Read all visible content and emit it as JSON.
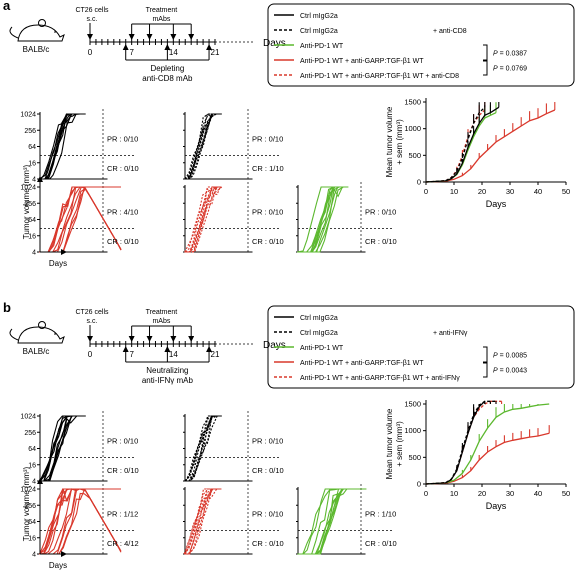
{
  "colors": {
    "ctrl": "#000000",
    "pd1": "#5cb82f",
    "combo": "#d9382c"
  },
  "panel_a": {
    "label": "a",
    "scheme": {
      "cells": [
        "CT26 cells",
        "s.c."
      ],
      "treatment": [
        "Treatment",
        "mAbs"
      ],
      "mouse": "BALB/c",
      "days_label": "Days",
      "ticks": [
        "0",
        "7",
        "14",
        "21"
      ],
      "depletion": [
        "Depleting",
        "anti-CD8 mAb"
      ]
    },
    "legend": [
      {
        "name": "Ctrl mIgG2a",
        "color": "#000000",
        "dashed": false,
        "extra": ""
      },
      {
        "name": "Ctrl mIgG2a",
        "color": "#000000",
        "dashed": true,
        "extra": "+ anti-CD8"
      },
      {
        "name": "Anti-PD-1 WT",
        "color": "#5cb82f",
        "dashed": false,
        "extra": ""
      },
      {
        "name": "Anti-PD-1 WT + anti-GARP:TGF-β1 WT",
        "color": "#d9382c",
        "dashed": false,
        "extra": ""
      },
      {
        "name": "Anti-PD-1 WT + anti-GARP:TGF-β1 WT + anti-CD8",
        "color": "#d9382c",
        "dashed": true,
        "extra": ""
      }
    ],
    "pvalues": [
      "P = 0.0387",
      "P = 0.0769"
    ],
    "panels": [
      {
        "pr": "PR : 0/10",
        "cr": "CR : 0/10"
      },
      {
        "pr": "PR : 0/10",
        "cr": "CR : 1/10"
      },
      {
        "pr": "PR : 4/10",
        "cr": "CR : 0/10"
      },
      {
        "pr": "PR : 0/10",
        "cr": "CR : 0/10"
      },
      {
        "pr": "PR : 0/10",
        "cr": "CR : 0/10"
      }
    ]
  },
  "panel_b": {
    "label": "b",
    "scheme": {
      "cells": [
        "CT26 cells",
        "s.c."
      ],
      "treatment": [
        "Treatment",
        "mAbs"
      ],
      "mouse": "BALB/c",
      "days_label": "Days",
      "ticks": [
        "0",
        "7",
        "14",
        "21"
      ],
      "depletion": [
        "Neutralizing",
        "anti-IFNγ mAb"
      ]
    },
    "legend": [
      {
        "name": "Ctrl mIgG2a",
        "color": "#000000",
        "dashed": false,
        "extra": ""
      },
      {
        "name": "Ctrl mIgG2a",
        "color": "#000000",
        "dashed": true,
        "extra": "+ anti-IFNγ"
      },
      {
        "name": "Anti-PD-1 WT",
        "color": "#5cb82f",
        "dashed": false,
        "extra": ""
      },
      {
        "name": "Anti-PD-1 WT + anti-GARP:TGF-β1 WT",
        "color": "#d9382c",
        "dashed": false,
        "extra": ""
      },
      {
        "name": "Anti-PD-1 WT + anti-GARP:TGF-β1 WT + anti-IFNγ",
        "color": "#d9382c",
        "dashed": true,
        "extra": ""
      }
    ],
    "pvalues": [
      "P = 0.0085",
      "P = 0.0043"
    ],
    "panels": [
      {
        "pr": "PR : 0/10",
        "cr": "CR : 0/10"
      },
      {
        "pr": "PR : 0/10",
        "cr": "CR : 0/10"
      },
      {
        "pr": "PR : 1/12",
        "cr": "CR : 4/12"
      },
      {
        "pr": "PR : 0/10",
        "cr": "CR : 0/10"
      },
      {
        "pr": "PR : 1/10",
        "cr": "CR : 0/10"
      }
    ]
  },
  "axis_text": {
    "tumor_volume": "Tumor volume (mm³)",
    "mean_volume": [
      "Mean tumor volume",
      "+ sem (mm³)"
    ],
    "days": "Days"
  },
  "chart_data": [
    {
      "type": "line",
      "panel": "a-individual",
      "ylabel": "Tumor volume (mm³)",
      "xlabel": "Days",
      "yticks": [
        4,
        16,
        64,
        256,
        1024
      ],
      "yscale": "log2",
      "groups": [
        "Ctrl mIgG2a",
        "Ctrl mIgG2a + anti-CD8",
        "Anti-PD-1 WT + anti-GARP:TGF-β1 WT",
        "Anti-PD-1 WT + anti-GARP:TGF-β1 WT + anti-CD8",
        "Anti-PD-1 WT"
      ]
    },
    {
      "type": "line",
      "panel": "a-mean",
      "xlabel": "Days",
      "ylabel": "Mean tumor volume + sem (mm³)",
      "xticks": [
        0,
        10,
        20,
        30,
        40,
        50
      ],
      "yticks": [
        0,
        500,
        1000,
        1500
      ],
      "xlim": [
        0,
        50
      ],
      "ylim": [
        0,
        1500
      ],
      "series": [
        {
          "name": "Ctrl mIgG2a",
          "x": [
            0,
            7,
            9,
            11,
            13,
            15,
            17,
            19,
            21,
            23,
            26
          ],
          "y": [
            0,
            20,
            60,
            150,
            350,
            650,
            900,
            1100,
            1250,
            1300,
            1400
          ]
        },
        {
          "name": "Ctrl mIgG2a + anti-CD8",
          "x": [
            0,
            7,
            9,
            11,
            13,
            15,
            17,
            19,
            21
          ],
          "y": [
            0,
            25,
            80,
            200,
            450,
            800,
            1100,
            1300,
            1400
          ]
        },
        {
          "name": "Anti-PD-1 WT",
          "x": [
            0,
            7,
            9,
            11,
            13,
            15,
            17,
            19,
            21,
            23,
            25
          ],
          "y": [
            0,
            20,
            60,
            140,
            320,
            600,
            850,
            1050,
            1200,
            1250,
            1300
          ]
        },
        {
          "name": "Anti-PD-1 WT + anti-GARP:TGF-β1 WT",
          "x": [
            0,
            7,
            10,
            13,
            16,
            19,
            22,
            25,
            28,
            31,
            34,
            37,
            40,
            43,
            46
          ],
          "y": [
            0,
            15,
            50,
            120,
            250,
            450,
            600,
            750,
            850,
            950,
            1050,
            1150,
            1200,
            1280,
            1350
          ]
        },
        {
          "name": "Anti-PD-1 WT + anti-GARP:TGF-β1 WT + anti-CD8",
          "x": [
            0,
            7,
            9,
            11,
            13,
            15,
            17,
            19,
            21
          ],
          "y": [
            0,
            25,
            80,
            220,
            500,
            850,
            1100,
            1250,
            1350
          ]
        }
      ]
    },
    {
      "type": "line",
      "panel": "b-individual",
      "ylabel": "Tumor volume (mm³)",
      "xlabel": "Days",
      "yticks": [
        4,
        16,
        64,
        256,
        1024
      ],
      "yscale": "log2",
      "groups": [
        "Ctrl mIgG2a",
        "Ctrl mIgG2a + anti-IFNγ",
        "Anti-PD-1 WT + anti-GARP:TGF-β1 WT",
        "Anti-PD-1 WT + anti-GARP:TGF-β1 WT + anti-IFNγ",
        "Anti-PD-1 WT"
      ]
    },
    {
      "type": "line",
      "panel": "b-mean",
      "xlabel": "Days",
      "ylabel": "Mean tumor volume + sem (mm³)",
      "xticks": [
        0,
        10,
        20,
        30,
        40,
        50
      ],
      "yticks": [
        0,
        500,
        1000,
        1500
      ],
      "xlim": [
        0,
        50
      ],
      "ylim": [
        0,
        1500
      ],
      "series": [
        {
          "name": "Ctrl mIgG2a",
          "x": [
            0,
            7,
            9,
            11,
            13,
            15,
            17,
            19,
            21
          ],
          "y": [
            0,
            20,
            80,
            250,
            600,
            950,
            1250,
            1450,
            1550
          ]
        },
        {
          "name": "Ctrl mIgG2a + anti-IFNγ",
          "x": [
            0,
            7,
            9,
            11,
            13,
            15,
            17,
            19,
            21,
            23,
            25
          ],
          "y": [
            0,
            25,
            90,
            280,
            650,
            1000,
            1300,
            1480,
            1550,
            1550,
            1550
          ]
        },
        {
          "name": "Anti-PD-1 WT",
          "x": [
            0,
            7,
            10,
            13,
            16,
            19,
            22,
            25,
            28,
            31,
            34,
            37,
            40,
            44
          ],
          "y": [
            0,
            20,
            70,
            200,
            450,
            800,
            1050,
            1250,
            1350,
            1400,
            1420,
            1450,
            1480,
            1500
          ]
        },
        {
          "name": "Anti-PD-1 WT + anti-GARP:TGF-β1 WT",
          "x": [
            0,
            7,
            10,
            13,
            16,
            19,
            22,
            25,
            28,
            31,
            34,
            37,
            40,
            44
          ],
          "y": [
            0,
            15,
            50,
            120,
            250,
            450,
            600,
            700,
            780,
            820,
            850,
            880,
            900,
            950
          ]
        },
        {
          "name": "Anti-PD-1 WT + anti-GARP:TGF-β1 WT + anti-IFNγ",
          "x": [
            0,
            7,
            9,
            11,
            13,
            15,
            17,
            19,
            21,
            23,
            25,
            27
          ],
          "y": [
            0,
            25,
            80,
            250,
            600,
            950,
            1250,
            1400,
            1500,
            1550,
            1550,
            1550
          ]
        }
      ]
    }
  ]
}
